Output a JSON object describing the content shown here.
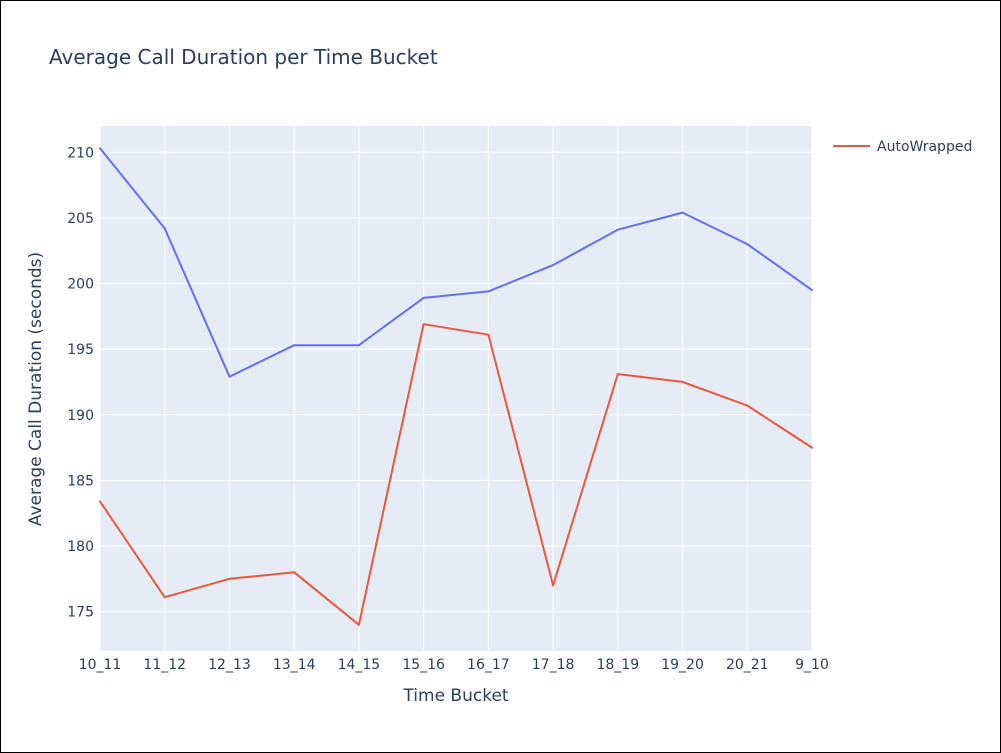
{
  "chart_data": {
    "type": "line",
    "title": "Average Call Duration per Time Bucket",
    "xlabel": "Time Bucket",
    "ylabel": "Average Call Duration (seconds)",
    "categories": [
      "10_11",
      "11_12",
      "12_13",
      "13_14",
      "14_15",
      "15_16",
      "16_17",
      "17_18",
      "18_19",
      "19_20",
      "20_21",
      "9_10"
    ],
    "ylim": [
      172,
      212
    ],
    "yticks": [
      175,
      180,
      185,
      190,
      195,
      200,
      205,
      210
    ],
    "grid": true,
    "legend_position": "top-right",
    "series": [
      {
        "color": "#636efa",
        "values": [
          210.3,
          204.2,
          192.9,
          195.3,
          195.3,
          198.9,
          199.4,
          201.4,
          204.1,
          205.4,
          203.0,
          199.5
        ]
      },
      {
        "name": "AutoWrapped",
        "color": "#ef553b",
        "values": [
          183.4,
          176.1,
          177.5,
          178.0,
          174.0,
          196.9,
          196.1,
          177.0,
          193.1,
          192.5,
          190.7,
          187.5
        ]
      }
    ]
  },
  "colors": {
    "plot_background": "#e5ecf6",
    "gridline": "#ffffff",
    "text": "#2a3f5f"
  }
}
